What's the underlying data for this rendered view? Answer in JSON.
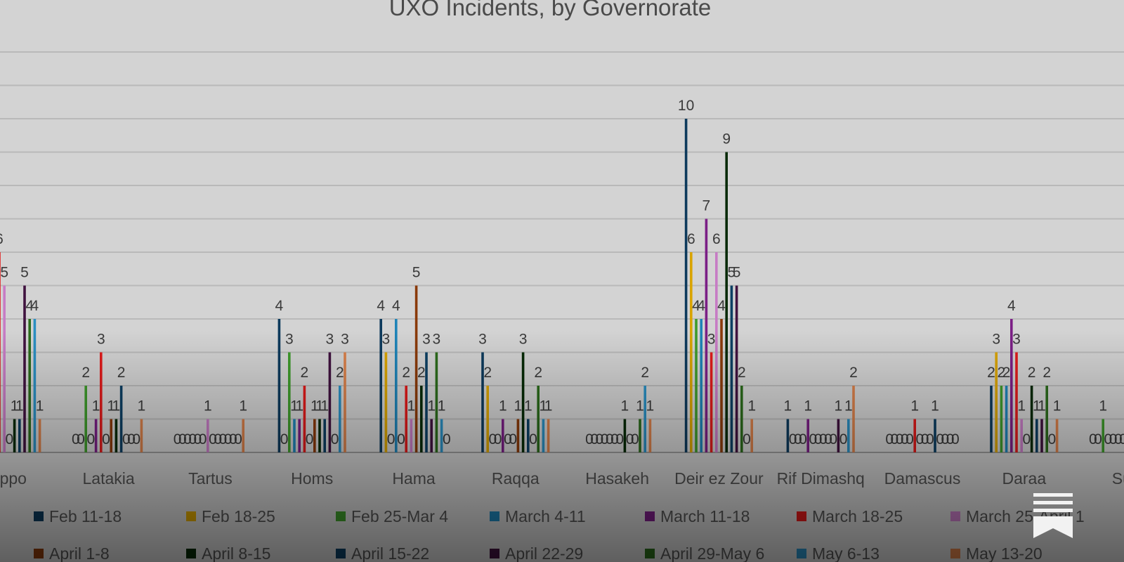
{
  "chart_data": {
    "type": "bar",
    "title": "UXO Incidents, by Governorate",
    "categories": [
      "Aleppo",
      "Latakia",
      "Tartus",
      "Homs",
      "Hama",
      "Raqqa",
      "Hasakeh",
      "Deir ez Zour",
      "Rif Dimashq",
      "Damascus",
      "Daraa",
      "Suwayda"
    ],
    "category_display": [
      "leppo",
      "Latakia",
      "Tartus",
      "Homs",
      "Hama",
      "Raqqa",
      "Hasakeh",
      "Deir ez Zour",
      "Rif Dimashq",
      "Damascus",
      "Daraa",
      "Suv"
    ],
    "ylim": [
      0,
      12
    ],
    "grid": true,
    "legend_position": "bottom",
    "series": [
      {
        "name": "Feb 11-18",
        "color": "#0d3a5c",
        "values": [
          null,
          0,
          0,
          4,
          4,
          3,
          null,
          10,
          1,
          0,
          2,
          0
        ]
      },
      {
        "name": "Feb 18-25",
        "color": "#d9a400",
        "values": [
          null,
          0,
          0,
          0,
          3,
          2,
          0,
          6,
          0,
          0,
          3,
          0
        ]
      },
      {
        "name": "Feb 25-Mar 4",
        "color": "#3f9b2c",
        "values": [
          null,
          2,
          0,
          3,
          0,
          0,
          0,
          4,
          0,
          0,
          2,
          1
        ]
      },
      {
        "name": "March 4-11",
        "color": "#1f84b8",
        "values": [
          null,
          0,
          0,
          1,
          4,
          0,
          0,
          4,
          0,
          0,
          2,
          0
        ]
      },
      {
        "name": "March 11-18",
        "color": "#7b1f86",
        "values": [
          null,
          1,
          0,
          1,
          0,
          1,
          0,
          7,
          1,
          0,
          4,
          0
        ]
      },
      {
        "name": "March 18-25",
        "color": "#e01b1b",
        "values": [
          6,
          3,
          0,
          2,
          2,
          0,
          0,
          3,
          0,
          1,
          3,
          0
        ]
      },
      {
        "name": "March 25-April 1",
        "color": "#c77cc5",
        "values": [
          5,
          0,
          1,
          0,
          1,
          0,
          0,
          6,
          0,
          0,
          1,
          0
        ]
      },
      {
        "name": "April 1-8",
        "color": "#8a3a0a",
        "values": [
          0,
          1,
          0,
          1,
          5,
          1,
          0,
          4,
          0,
          0,
          0,
          0
        ]
      },
      {
        "name": "April 8-15",
        "color": "#062a06",
        "values": [
          1,
          1,
          0,
          1,
          2,
          3,
          1,
          9,
          0,
          0,
          2,
          0
        ]
      },
      {
        "name": "April 15-22",
        "color": "#0c3f63",
        "values": [
          1,
          2,
          0,
          1,
          3,
          1,
          0,
          5,
          0,
          1,
          1,
          0
        ]
      },
      {
        "name": "April 22-29",
        "color": "#40123f",
        "values": [
          5,
          0,
          0,
          3,
          1,
          0,
          0,
          5,
          1,
          0,
          1,
          0
        ]
      },
      {
        "name": "April 29-May 6",
        "color": "#2c6b1c",
        "values": [
          4,
          0,
          0,
          0,
          3,
          2,
          1,
          2,
          0,
          0,
          2,
          1
        ]
      },
      {
        "name": "May 6-13",
        "color": "#2b8fc2",
        "values": [
          4,
          0,
          0,
          2,
          1,
          1,
          2,
          0,
          1,
          0,
          0,
          0
        ]
      },
      {
        "name": "May 13-20",
        "color": "#d9804a",
        "values": [
          1,
          1,
          1,
          3,
          0,
          1,
          1,
          1,
          2,
          0,
          1,
          0
        ]
      }
    ]
  },
  "legend_rows": [
    [
      "Feb 11-18",
      "Feb 18-25",
      "Feb 25-Mar 4",
      "March 4-11",
      "March 11-18",
      "March 18-25",
      "March 25-April 1"
    ],
    [
      "April 1-8",
      "April 8-15",
      "April 15-22",
      "April 22-29",
      "April 29-May 6",
      "May 6-13",
      "May 13-20"
    ]
  ],
  "icons": {
    "bookmark": "bookmark-icon"
  }
}
